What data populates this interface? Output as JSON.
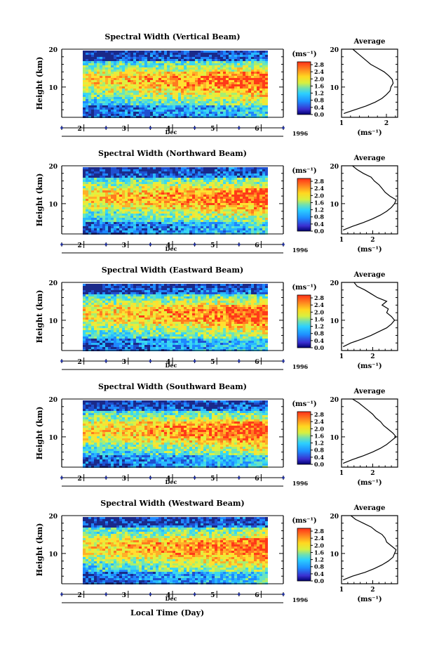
{
  "chart_data": [
    {
      "type": "heatmap",
      "title": "Spectral Width (Vertical Beam)",
      "ylabel": "Height (km)",
      "ylim": [
        2,
        20
      ],
      "yticks": [
        10,
        20
      ],
      "xlim": [
        1.5,
        6.5
      ],
      "xticks": [
        2,
        3,
        4,
        5,
        6
      ],
      "xlabel": "Dec",
      "year": "1996",
      "colorbar": {
        "unit": "(ms⁻¹)",
        "ticks": [
          "0.0",
          "0.4",
          "0.8",
          "1.2",
          "1.6",
          "2.0",
          "2.4",
          "2.8"
        ]
      },
      "profile": {
        "title": "Average",
        "xlabel": "(ms⁻¹)",
        "xlim": [
          1,
          2.25
        ],
        "xticks": [
          "1",
          "2"
        ],
        "yticks": [
          "10",
          "20"
        ],
        "heights": [
          3,
          4,
          5,
          6,
          7,
          8,
          9,
          10,
          11,
          12,
          13,
          14,
          15,
          16,
          17,
          18,
          19,
          20
        ],
        "values": [
          1.05,
          1.3,
          1.55,
          1.75,
          1.9,
          2.0,
          2.08,
          2.1,
          2.15,
          2.13,
          2.05,
          1.95,
          1.8,
          1.65,
          1.55,
          1.45,
          1.35,
          1.25
        ]
      }
    },
    {
      "type": "heatmap",
      "title": "Spectral Width (Northward Beam)",
      "ylabel": "Height (km)",
      "ylim": [
        2,
        20
      ],
      "yticks": [
        10,
        20
      ],
      "xlim": [
        1.5,
        6.5
      ],
      "xticks": [
        2,
        3,
        4,
        5,
        6
      ],
      "xlabel": "Dec",
      "year": "1996",
      "colorbar": {
        "unit": "(ms⁻¹)",
        "ticks": [
          "0.0",
          "0.4",
          "0.8",
          "1.2",
          "1.6",
          "2.0",
          "2.4",
          "2.8"
        ]
      },
      "profile": {
        "title": "Average",
        "xlabel": "(ms⁻¹)",
        "xlim": [
          1,
          2.8
        ],
        "xticks": [
          "1",
          "2"
        ],
        "yticks": [
          "10",
          "20"
        ],
        "heights": [
          3,
          4,
          5,
          6,
          7,
          8,
          9,
          10,
          11,
          12,
          13,
          14,
          15,
          16,
          17,
          18,
          19,
          20
        ],
        "values": [
          1.05,
          1.35,
          1.7,
          2.0,
          2.25,
          2.45,
          2.6,
          2.7,
          2.75,
          2.55,
          2.4,
          2.3,
          2.2,
          2.05,
          1.95,
          1.7,
          1.5,
          1.35
        ]
      }
    },
    {
      "type": "heatmap",
      "title": "Spectral Width (Eastward Beam)",
      "ylabel": "Height (km)",
      "ylim": [
        2,
        20
      ],
      "yticks": [
        10,
        20
      ],
      "xlim": [
        1.5,
        6.5
      ],
      "xticks": [
        2,
        3,
        4,
        5,
        6
      ],
      "xlabel": "Dec",
      "year": "1996",
      "colorbar": {
        "unit": "(ms⁻¹)",
        "ticks": [
          "0.0",
          "0.4",
          "0.8",
          "1.2",
          "1.6",
          "2.0",
          "2.4",
          "2.8"
        ]
      },
      "profile": {
        "title": "Average",
        "xlabel": "(ms⁻¹)",
        "xlim": [
          1,
          2.8
        ],
        "xticks": [
          "1",
          "2"
        ],
        "yticks": [
          "10",
          "20"
        ],
        "heights": [
          3,
          4,
          5,
          6,
          7,
          8,
          9,
          10,
          11,
          12,
          13,
          14,
          15,
          16,
          17,
          18,
          19,
          20
        ],
        "values": [
          1.05,
          1.3,
          1.65,
          1.95,
          2.2,
          2.45,
          2.6,
          2.7,
          2.6,
          2.45,
          2.5,
          2.3,
          2.45,
          2.15,
          1.95,
          1.75,
          1.5,
          1.4
        ]
      }
    },
    {
      "type": "heatmap",
      "title": "Spectral Width (Southward Beam)",
      "ylabel": "Height (km)",
      "ylim": [
        2,
        20
      ],
      "yticks": [
        10,
        20
      ],
      "xlim": [
        1.5,
        6.5
      ],
      "xticks": [
        2,
        3,
        4,
        5,
        6
      ],
      "xlabel": "Dec",
      "year": "1996",
      "colorbar": {
        "unit": "(ms⁻¹)",
        "ticks": [
          "0.0",
          "0.4",
          "0.8",
          "1.2",
          "1.6",
          "2.0",
          "2.4",
          "2.8"
        ]
      },
      "profile": {
        "title": "Average",
        "xlabel": "(ms⁻¹)",
        "xlim": [
          1,
          2.8
        ],
        "xticks": [
          "1",
          "2"
        ],
        "yticks": [
          "10",
          "20"
        ],
        "heights": [
          3,
          4,
          5,
          6,
          7,
          8,
          9,
          10,
          11,
          12,
          13,
          14,
          15,
          16,
          17,
          18,
          19,
          20
        ],
        "values": [
          1.05,
          1.35,
          1.7,
          2.0,
          2.25,
          2.45,
          2.6,
          2.75,
          2.65,
          2.5,
          2.35,
          2.25,
          2.1,
          2.0,
          1.85,
          1.7,
          1.55,
          1.35
        ]
      }
    },
    {
      "type": "heatmap",
      "title": "Spectral Width (Westward Beam)",
      "ylabel": "Height (km)",
      "ylim": [
        2,
        20
      ],
      "yticks": [
        10,
        20
      ],
      "xlim": [
        1.5,
        6.5
      ],
      "xticks": [
        2,
        3,
        4,
        5,
        6
      ],
      "xlabel": "Dec",
      "year": "1996",
      "colorbar": {
        "unit": "(ms⁻¹)",
        "ticks": [
          "0.0",
          "0.4",
          "0.8",
          "1.2",
          "1.6",
          "2.0",
          "2.4",
          "2.8"
        ]
      },
      "profile": {
        "title": "Average",
        "xlabel": "(ms⁻¹)",
        "xlim": [
          1,
          2.8
        ],
        "xticks": [
          "1",
          "2"
        ],
        "yticks": [
          "10",
          "20"
        ],
        "heights": [
          3,
          4,
          5,
          6,
          7,
          8,
          9,
          10,
          11,
          12,
          13,
          14,
          15,
          16,
          17,
          18,
          19,
          20
        ],
        "values": [
          1.05,
          1.35,
          1.75,
          2.05,
          2.3,
          2.5,
          2.65,
          2.7,
          2.75,
          2.6,
          2.45,
          2.4,
          2.3,
          2.1,
          1.95,
          1.7,
          1.45,
          1.3
        ]
      }
    }
  ],
  "footer": {
    "xlabel": "Local Time (Day)"
  }
}
